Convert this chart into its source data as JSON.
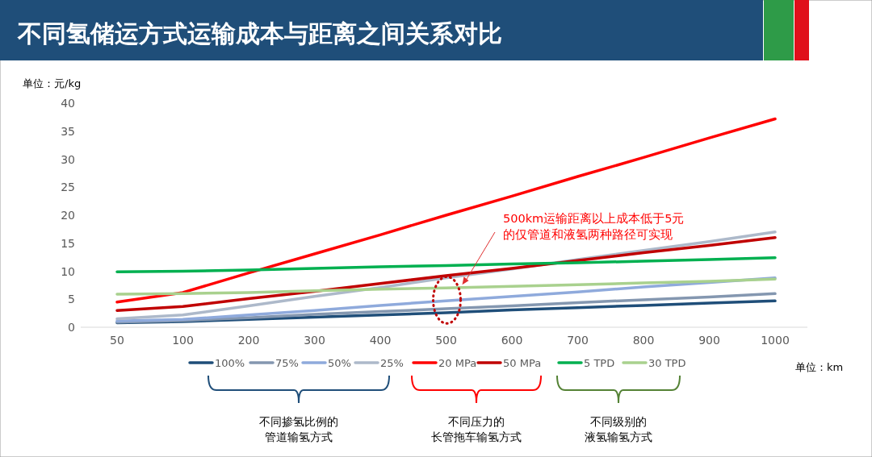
{
  "chart_data": {
    "type": "line",
    "title": "不同氢储运方式运输成本与距离之间关系对比",
    "ylabel": "单位：元/kg",
    "xlabel": "单位：km",
    "categories": [
      "50",
      "100",
      "200",
      "300",
      "400",
      "500",
      "600",
      "700",
      "800",
      "900",
      "1000"
    ],
    "ylim": [
      0,
      40
    ],
    "yticks": [
      0,
      5,
      10,
      15,
      20,
      25,
      30,
      35,
      40
    ],
    "legend": "bottom",
    "series": [
      {
        "name": "100%",
        "color": "#1f4e79",
        "values": [
          0.8,
          1.0,
          1.4,
          1.8,
          2.2,
          2.6,
          3.1,
          3.5,
          3.9,
          4.3,
          4.7
        ]
      },
      {
        "name": "75%",
        "color": "#8497b0",
        "values": [
          0.9,
          1.2,
          1.7,
          2.3,
          2.8,
          3.3,
          3.8,
          4.4,
          4.9,
          5.4,
          6.0
        ]
      },
      {
        "name": "50%",
        "color": "#8faadc",
        "values": [
          1.1,
          1.4,
          2.2,
          3.0,
          3.9,
          4.7,
          5.5,
          6.3,
          7.2,
          8.0,
          8.8
        ]
      },
      {
        "name": "25%",
        "color": "#adb9ca",
        "values": [
          1.5,
          2.2,
          3.8,
          5.5,
          7.1,
          8.8,
          10.4,
          12.1,
          13.7,
          15.3,
          17.0
        ]
      },
      {
        "name": "20 MPa",
        "color": "#ff0000",
        "values": [
          4.5,
          6.2,
          9.7,
          13.1,
          16.5,
          20.0,
          23.4,
          26.9,
          30.3,
          33.8,
          37.2
        ]
      },
      {
        "name": "50 MPa",
        "color": "#c00000",
        "values": [
          3.0,
          3.7,
          5.1,
          6.4,
          7.8,
          9.2,
          10.5,
          11.9,
          13.3,
          14.6,
          16.0
        ]
      },
      {
        "name": "5 TPD",
        "color": "#00b050",
        "values": [
          9.9,
          10.0,
          10.2,
          10.5,
          10.8,
          11.0,
          11.3,
          11.5,
          11.8,
          12.1,
          12.4
        ]
      },
      {
        "name": "30 TPD",
        "color": "#a9d18e",
        "values": [
          5.9,
          6.0,
          6.2,
          6.5,
          6.8,
          7.0,
          7.3,
          7.6,
          7.9,
          8.2,
          8.6
        ]
      }
    ],
    "annotations": [
      "500km运输距离以上成本低于5元的仅管道和液氢两种路径可实现",
      "不同掺氢比例的管道输氢方式",
      "不同压力的长管拖车输氢方式",
      "不同级别的液氢输氢方式"
    ]
  }
}
